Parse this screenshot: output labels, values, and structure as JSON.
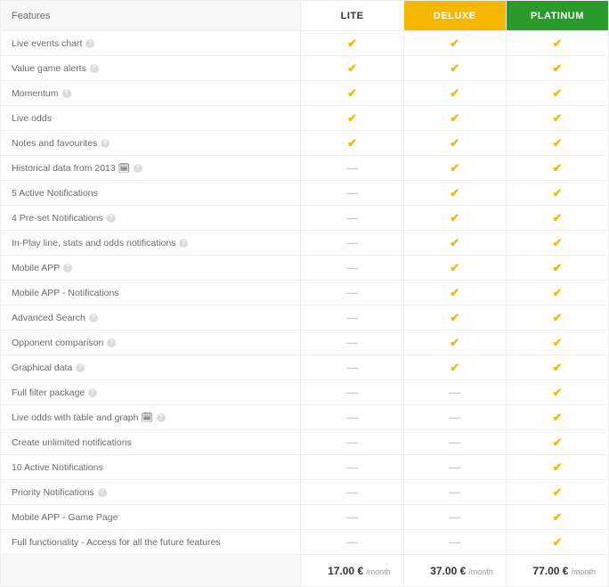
{
  "header": {
    "features_label": "Features",
    "plans": [
      {
        "key": "lite",
        "label": "LITE",
        "bg": "#ffffff",
        "color": "#333333"
      },
      {
        "key": "deluxe",
        "label": "DELUXE",
        "bg": "#f6b700",
        "color": "#ffffff"
      },
      {
        "key": "platinum",
        "label": "PLATINUM",
        "bg": "#2a9a2a",
        "color": "#ffffff"
      }
    ]
  },
  "colors": {
    "check": "#f6b700",
    "dash": "#cccccc",
    "border": "#eeeeee",
    "feature_bg": "#f7f7f7",
    "text": "#6a6a6a"
  },
  "icons": {
    "check_glyph": "✔",
    "dash_glyph": "—"
  },
  "features": [
    {
      "label": "Live events chart",
      "help": true,
      "lite": true,
      "deluxe": true,
      "platinum": true
    },
    {
      "label": "Value game alerts",
      "help": true,
      "lite": true,
      "deluxe": true,
      "platinum": true
    },
    {
      "label": "Momentum",
      "help": true,
      "lite": true,
      "deluxe": true,
      "platinum": true
    },
    {
      "label": "Live odds",
      "help": false,
      "lite": true,
      "deluxe": true,
      "platinum": true
    },
    {
      "label": "Notes and favourites",
      "help": true,
      "lite": true,
      "deluxe": true,
      "platinum": true
    },
    {
      "label": "Historical data from 2013 🗓",
      "help": true,
      "lite": false,
      "deluxe": true,
      "platinum": true
    },
    {
      "label": "5 Active Notifications",
      "help": false,
      "lite": false,
      "deluxe": true,
      "platinum": true
    },
    {
      "label": "4 Pre-set Notifications",
      "help": true,
      "lite": false,
      "deluxe": true,
      "platinum": true
    },
    {
      "label": "In-Play line, stats and odds notifications",
      "help": true,
      "lite": false,
      "deluxe": true,
      "platinum": true
    },
    {
      "label": "Mobile APP",
      "help": true,
      "lite": false,
      "deluxe": true,
      "platinum": true
    },
    {
      "label": "Mobile APP - Notifications",
      "help": false,
      "lite": false,
      "deluxe": true,
      "platinum": true
    },
    {
      "label": "Advanced Search",
      "help": true,
      "lite": false,
      "deluxe": true,
      "platinum": true
    },
    {
      "label": "Opponent comparison",
      "help": true,
      "lite": false,
      "deluxe": true,
      "platinum": true
    },
    {
      "label": "Graphical data",
      "help": true,
      "lite": false,
      "deluxe": true,
      "platinum": true
    },
    {
      "label": "Full filter package",
      "help": true,
      "lite": false,
      "deluxe": false,
      "platinum": true
    },
    {
      "label": "Live odds with table and graph 🗓",
      "help": true,
      "lite": false,
      "deluxe": false,
      "platinum": true
    },
    {
      "label": "Create unlimited notifications",
      "help": false,
      "lite": false,
      "deluxe": false,
      "platinum": true
    },
    {
      "label": "10 Active Notifications",
      "help": false,
      "lite": false,
      "deluxe": false,
      "platinum": true
    },
    {
      "label": "Priority Notifications",
      "help": true,
      "lite": false,
      "deluxe": false,
      "platinum": true
    },
    {
      "label": "Mobile APP - Game Page",
      "help": false,
      "lite": false,
      "deluxe": false,
      "platinum": true
    },
    {
      "label": "Full functionality - Access for all the future features",
      "help": false,
      "lite": false,
      "deluxe": false,
      "platinum": true
    }
  ],
  "pricing": {
    "unit_label": "/month",
    "currency": "€",
    "lite": "17.00",
    "deluxe": "37.00",
    "platinum": "77.00"
  }
}
